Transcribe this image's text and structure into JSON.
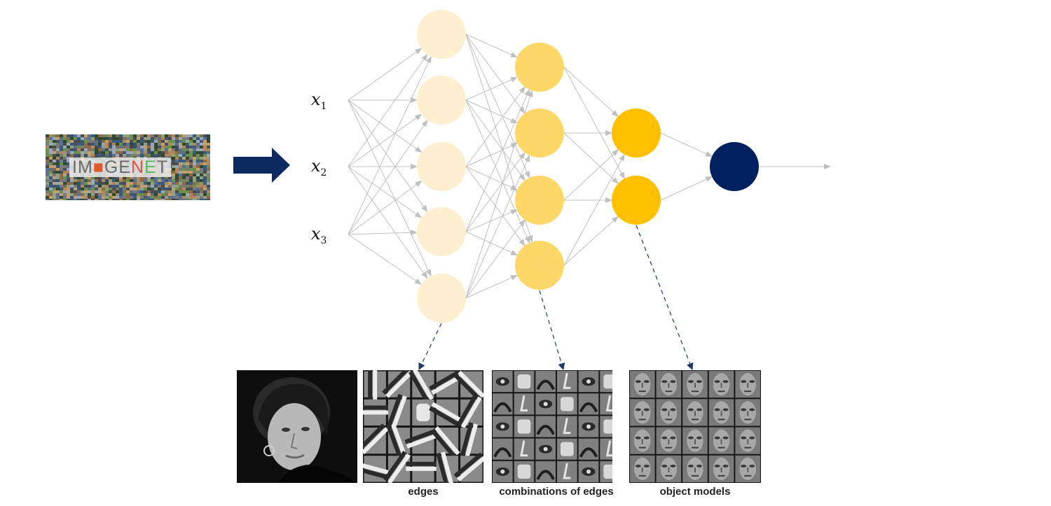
{
  "input_image": {
    "logo_parts": [
      "IM",
      "GE",
      "N",
      "E",
      "T"
    ]
  },
  "inputs": {
    "x1": {
      "base": "x",
      "sub": "1"
    },
    "x2": {
      "base": "x",
      "sub": "2"
    },
    "x3": {
      "base": "x",
      "sub": "3"
    }
  },
  "layers": [
    {
      "size": 5,
      "color": "#fdf0d0"
    },
    {
      "size": 4,
      "color": "#fdd868"
    },
    {
      "size": 2,
      "color": "#ffc000"
    },
    {
      "size": 1,
      "color": "#002060"
    }
  ],
  "colors": {
    "arrow": "#0d2a5e",
    "connection": "#c0c0c0",
    "dashed": "#1f3864"
  },
  "feature_panels": [
    {
      "icon": "face-photo",
      "caption": ""
    },
    {
      "icon": "edge-filters",
      "caption": "edges"
    },
    {
      "icon": "edge-combinations",
      "caption": "combinations of edges"
    },
    {
      "icon": "face-models",
      "caption": "object models"
    }
  ]
}
